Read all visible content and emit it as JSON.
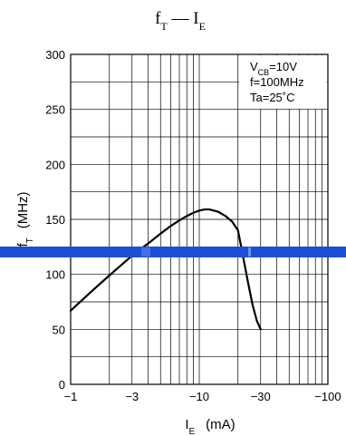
{
  "chart_data": {
    "type": "line",
    "title": {
      "main": "f",
      "main_sub": "T",
      "dash": " — ",
      "right": "I",
      "right_sub": "E"
    },
    "xlabel": {
      "main": "I",
      "sub": "E",
      "unit": "(mA)"
    },
    "ylabel": {
      "main": "f",
      "sub": "T",
      "unit": "(MHz)"
    },
    "x_scale": "log",
    "xlim": [
      -1,
      -100
    ],
    "ylim": [
      0,
      300
    ],
    "x_ticks": [
      {
        "value": -1,
        "label": "−1"
      },
      {
        "value": -3,
        "label": "−3"
      },
      {
        "value": -10,
        "label": "−10"
      },
      {
        "value": -30,
        "label": "−30"
      },
      {
        "value": -100,
        "label": "−100"
      }
    ],
    "y_ticks": [
      0,
      50,
      100,
      150,
      200,
      250,
      300
    ],
    "grid": true,
    "annotation": {
      "line1": {
        "main": "V",
        "sub": "CB",
        "rest": "=10V"
      },
      "line2": "f=100MHz",
      "line3": "Ta=25˚C"
    },
    "series": [
      {
        "x": [
          -1,
          -1.5,
          -2,
          -3,
          -4,
          -5,
          -6,
          -7,
          -8,
          -9,
          -10,
          -11,
          -12,
          -14,
          -16,
          -18,
          -20,
          -22,
          -24,
          -26,
          -28,
          -30
        ],
        "y": [
          67,
          86,
          99,
          117,
          128,
          137,
          144,
          149,
          153,
          156,
          158,
          159,
          159,
          157,
          153,
          148,
          140,
          115,
          92,
          72,
          58,
          50
        ]
      }
    ]
  }
}
